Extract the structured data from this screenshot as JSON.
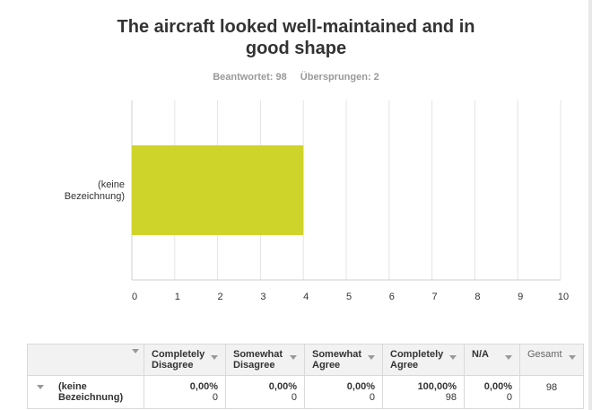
{
  "question": {
    "title_line1": "The aircraft looked well-maintained and in",
    "title_line2": "good shape",
    "answered": "Beantwortet: 98",
    "skipped": "Übersprungen: 2"
  },
  "chart_data": {
    "type": "bar",
    "orientation": "horizontal",
    "categories": [
      "(keine Bezeichnung)"
    ],
    "category_label_lines": [
      [
        "(keine",
        "Bezeichnung)"
      ]
    ],
    "values": [
      4
    ],
    "xlim": [
      0,
      10
    ],
    "ticks": [
      "0",
      "1",
      "2",
      "3",
      "4",
      "5",
      "6",
      "7",
      "8",
      "9",
      "10"
    ],
    "grid": true,
    "bar_color": "#cfd42a"
  },
  "table": {
    "columns": [
      "Completely Disagree",
      "Somewhat Disagree",
      "Somewhat Agree",
      "Completely Agree",
      "N/A",
      "Gesamt"
    ],
    "column_lines": [
      [
        "Completely",
        "Disagree"
      ],
      [
        "Somewhat",
        "Disagree"
      ],
      [
        "Somewhat",
        "Agree"
      ],
      [
        "Completely",
        "Agree"
      ],
      [
        "N/A"
      ],
      [
        "Gesamt"
      ]
    ],
    "rows": [
      {
        "label_lines": [
          "(keine",
          "Bezeichnung)"
        ],
        "cells": [
          {
            "pct": "0,00%",
            "count": "0"
          },
          {
            "pct": "0,00%",
            "count": "0"
          },
          {
            "pct": "0,00%",
            "count": "0"
          },
          {
            "pct": "100,00%",
            "count": "98"
          },
          {
            "pct": "0,00%",
            "count": "0"
          }
        ],
        "total": "98"
      }
    ]
  }
}
